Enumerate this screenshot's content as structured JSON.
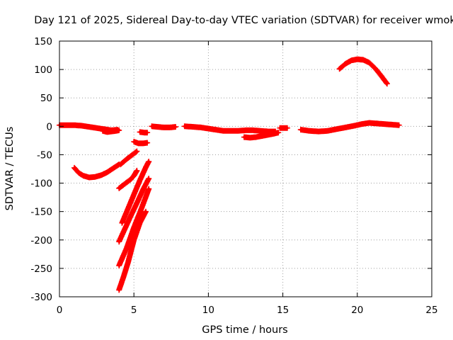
{
  "chart_data": {
    "type": "scatter",
    "title": "Day 121 of 2025, Sidereal Day-to-day VTEC variation (SDTVAR) for receiver wmok",
    "xlabel": "GPS time / hours",
    "ylabel": "SDTVAR / TECUs",
    "xlim": [
      0,
      25
    ],
    "ylim": [
      -300,
      150
    ],
    "xticks": [
      0,
      5,
      10,
      15,
      20,
      25
    ],
    "yticks": [
      -300,
      -250,
      -200,
      -150,
      -100,
      -50,
      0,
      50,
      100,
      150
    ],
    "grid": true,
    "grid_style": "dotted",
    "series_color": "#ff0000",
    "marker": "plus",
    "series": [
      {
        "name": "arc-near-zero-1",
        "x": [
          0.0,
          0.5,
          1.0,
          1.5,
          2.0,
          2.5,
          3.0,
          3.5,
          3.9
        ],
        "y": [
          2,
          2,
          2,
          1,
          -1,
          -3,
          -5,
          -7,
          -6
        ]
      },
      {
        "name": "arc-near-zero-1b",
        "x": [
          2.9,
          3.2,
          3.5,
          3.8,
          4.0
        ],
        "y": [
          -8,
          -10,
          -9,
          -8,
          -7
        ]
      },
      {
        "name": "arc-bowl",
        "x": [
          1.0,
          1.3,
          1.6,
          2.0,
          2.4,
          2.8,
          3.2,
          3.6,
          4.0
        ],
        "y": [
          -73,
          -82,
          -87,
          -90,
          -89,
          -86,
          -81,
          -74,
          -67
        ]
      },
      {
        "name": "arc-rise-a",
        "x": [
          4.0,
          4.4,
          4.8,
          5.0,
          5.2
        ],
        "y": [
          -109,
          -101,
          -93,
          -87,
          -78
        ]
      },
      {
        "name": "arc-rise-b",
        "x": [
          4.1,
          4.5,
          4.9,
          5.2
        ],
        "y": [
          -67,
          -58,
          -50,
          -44
        ]
      },
      {
        "name": "arc-steep-1",
        "x": [
          4.0,
          4.4,
          4.8,
          5.2,
          5.6,
          6.0
        ],
        "y": [
          -203,
          -180,
          -157,
          -135,
          -112,
          -92
        ]
      },
      {
        "name": "arc-steep-2",
        "x": [
          4.0,
          4.5,
          5.0,
          5.5,
          6.0
        ],
        "y": [
          -245,
          -215,
          -178,
          -145,
          -110
        ]
      },
      {
        "name": "arc-steep-3",
        "x": [
          4.0,
          4.3,
          4.6,
          5.0,
          5.4,
          5.8
        ],
        "y": [
          -288,
          -265,
          -240,
          -200,
          -170,
          -150
        ]
      },
      {
        "name": "arc-diag",
        "x": [
          4.2,
          4.6,
          5.0,
          5.4,
          5.8,
          6.0
        ],
        "y": [
          -170,
          -145,
          -120,
          -95,
          -72,
          -62
        ]
      },
      {
        "name": "arc-small-a",
        "x": [
          5.0,
          5.3,
          5.6,
          5.9
        ],
        "y": [
          -27,
          -30,
          -30,
          -29
        ]
      },
      {
        "name": "arc-small-b",
        "x": [
          5.4,
          5.7,
          5.9
        ],
        "y": [
          -10,
          -11,
          -11
        ]
      },
      {
        "name": "arc-zero-2",
        "x": [
          6.2,
          6.6,
          7.0,
          7.4,
          7.8
        ],
        "y": [
          0,
          -1,
          -2,
          -2,
          -1
        ]
      },
      {
        "name": "arc-zero-3",
        "x": [
          8.4,
          9.0,
          9.5,
          10.0,
          10.5,
          11.0,
          11.5,
          12.0,
          12.5,
          13.0,
          13.5,
          14.0,
          14.5
        ],
        "y": [
          0,
          -1,
          -2,
          -4,
          -6,
          -8,
          -8,
          -8,
          -7,
          -7,
          -8,
          -9,
          -9
        ]
      },
      {
        "name": "arc-dip",
        "x": [
          12.4,
          12.8,
          13.2,
          13.6,
          14.0,
          14.4,
          14.7
        ],
        "y": [
          -19,
          -20,
          -19,
          -17,
          -15,
          -13,
          -11
        ]
      },
      {
        "name": "arc-zero-4",
        "x": [
          14.8,
          15.3
        ],
        "y": [
          -3,
          -3
        ]
      },
      {
        "name": "arc-zero-5",
        "x": [
          16.2,
          16.8,
          17.4,
          18.0,
          18.6,
          19.2,
          19.8,
          20.3,
          20.8,
          21.3,
          21.8,
          22.3,
          22.8
        ],
        "y": [
          -6,
          -8,
          -9,
          -8,
          -5,
          -2,
          1,
          4,
          6,
          5,
          4,
          3,
          2
        ]
      },
      {
        "name": "arc-peak",
        "x": [
          18.8,
          19.2,
          19.6,
          20.0,
          20.4,
          20.8,
          21.2,
          21.6,
          22.0
        ],
        "y": [
          101,
          110,
          116,
          118,
          117,
          112,
          102,
          89,
          75
        ]
      }
    ]
  }
}
